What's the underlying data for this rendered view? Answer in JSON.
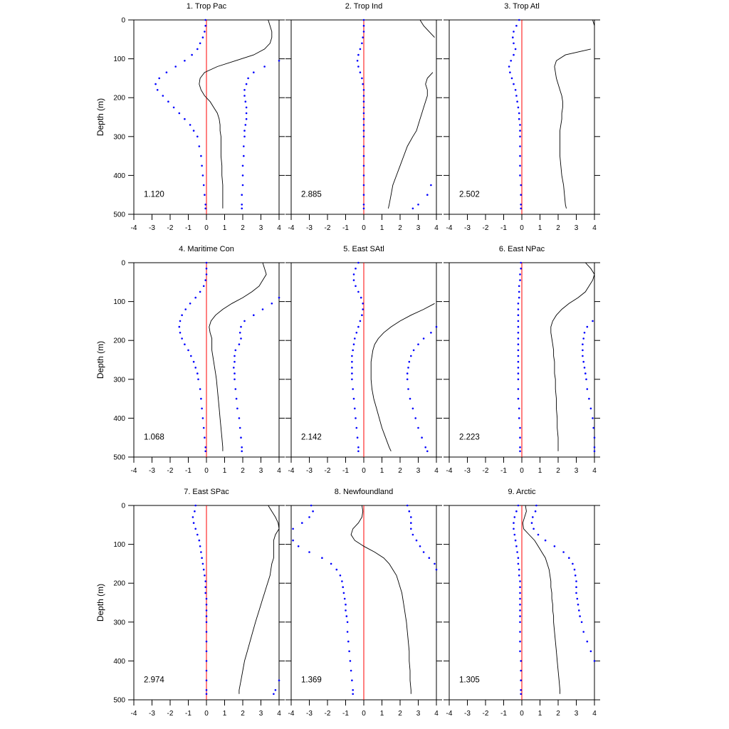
{
  "figure": {
    "ylabel": "Depth (m)",
    "colors": {
      "solid": "#000000",
      "dotted": "#0000ff",
      "zero": "#ff0000"
    }
  },
  "chart_data": [
    {
      "type": "line",
      "title": "1. Trop Pac",
      "stat": "1.120",
      "xlim": [
        -4,
        4
      ],
      "ylim": [
        0,
        500
      ],
      "y_reversed": true,
      "xticks": [
        "-4",
        "-3",
        "-2",
        "-1",
        "0",
        "1",
        "2",
        "3",
        "4"
      ],
      "yticks": [
        "0",
        "100",
        "200",
        "300",
        "400",
        "500"
      ],
      "depths": [
        0,
        15,
        30,
        45,
        60,
        75,
        90,
        105,
        120,
        135,
        150,
        165,
        180,
        195,
        210,
        225,
        240,
        255,
        270,
        285,
        300,
        325,
        350,
        375,
        400,
        425,
        450,
        475,
        485
      ],
      "solid": [
        3.4,
        3.5,
        3.6,
        3.6,
        3.5,
        3.2,
        2.6,
        1.6,
        0.6,
        -0.1,
        -0.35,
        -0.4,
        -0.3,
        -0.1,
        0.2,
        0.4,
        0.6,
        0.7,
        0.75,
        0.75,
        0.8,
        0.8,
        0.8,
        0.85,
        0.85,
        0.9,
        0.9,
        0.9,
        0.9
      ],
      "dotted": [
        -0.05,
        -0.05,
        -0.1,
        -0.2,
        -0.35,
        -0.5,
        -0.8,
        -1.2,
        -1.7,
        -2.2,
        -2.6,
        -2.8,
        -2.7,
        -2.4,
        -2.1,
        -1.8,
        -1.5,
        -1.2,
        -0.9,
        -0.7,
        -0.5,
        -0.4,
        -0.3,
        -0.25,
        -0.2,
        -0.15,
        -0.1,
        -0.05,
        -0.05
      ],
      "dotted2": [
        null,
        null,
        null,
        null,
        null,
        null,
        null,
        4.0,
        3.2,
        2.6,
        2.3,
        2.2,
        2.1,
        2.1,
        2.15,
        2.2,
        2.2,
        2.2,
        2.15,
        2.1,
        2.1,
        2.05,
        2.05,
        2.0,
        2.0,
        2.0,
        1.95,
        1.95,
        1.95
      ]
    },
    {
      "type": "line",
      "title": "2. Trop Ind",
      "stat": "2.885",
      "xlim": [
        -4,
        4
      ],
      "ylim": [
        0,
        500
      ],
      "y_reversed": true,
      "xticks": [
        "-4",
        "-3",
        "-2",
        "-1",
        "0",
        "1",
        "2",
        "3",
        "4"
      ],
      "yticks": [
        "0",
        "100",
        "200",
        "300",
        "400",
        "500"
      ],
      "depths": [
        0,
        15,
        30,
        45,
        60,
        75,
        90,
        105,
        120,
        135,
        150,
        165,
        180,
        195,
        210,
        225,
        240,
        255,
        270,
        285,
        300,
        325,
        350,
        375,
        400,
        425,
        450,
        475,
        485
      ],
      "solid": [
        3.1,
        3.3,
        3.6,
        3.9,
        null,
        null,
        null,
        null,
        null,
        3.8,
        3.5,
        3.4,
        3.5,
        3.5,
        3.4,
        3.3,
        3.2,
        3.1,
        3.0,
        2.9,
        2.7,
        2.4,
        2.2,
        2.0,
        1.8,
        1.6,
        1.5,
        1.4,
        1.35
      ],
      "dotted": [
        0,
        0,
        0,
        -0.05,
        -0.1,
        -0.2,
        -0.3,
        -0.35,
        -0.3,
        -0.2,
        -0.1,
        -0.05,
        0,
        0,
        0,
        0,
        0,
        0,
        0,
        0,
        0,
        0,
        0,
        0,
        0,
        0,
        0,
        0,
        0
      ],
      "dotted2": [
        null,
        null,
        null,
        null,
        null,
        null,
        null,
        null,
        null,
        null,
        null,
        null,
        null,
        null,
        null,
        null,
        null,
        null,
        null,
        null,
        null,
        null,
        null,
        null,
        null,
        3.7,
        3.5,
        3.0,
        2.7
      ]
    },
    {
      "type": "line",
      "title": "3. Trop Atl",
      "stat": "2.502",
      "xlim": [
        -4,
        4
      ],
      "ylim": [
        0,
        500
      ],
      "y_reversed": true,
      "xticks": [
        "-4",
        "-3",
        "-2",
        "-1",
        "0",
        "1",
        "2",
        "3",
        "4"
      ],
      "yticks": [
        "0",
        "100",
        "200",
        "300",
        "400",
        "500"
      ],
      "depths": [
        0,
        15,
        30,
        45,
        60,
        75,
        90,
        105,
        120,
        135,
        150,
        165,
        180,
        195,
        210,
        225,
        240,
        255,
        270,
        285,
        300,
        325,
        350,
        375,
        400,
        425,
        450,
        475,
        485
      ],
      "solid": [
        3.9,
        4.0,
        null,
        null,
        null,
        3.8,
        2.4,
        1.9,
        1.8,
        1.85,
        1.9,
        2.0,
        2.1,
        2.2,
        2.25,
        2.25,
        2.2,
        2.2,
        2.15,
        2.1,
        2.1,
        2.1,
        2.1,
        2.15,
        2.2,
        2.3,
        2.35,
        2.4,
        2.45
      ],
      "dotted": [
        -0.15,
        -0.3,
        -0.45,
        -0.5,
        -0.45,
        -0.35,
        -0.45,
        -0.6,
        -0.7,
        -0.65,
        -0.55,
        -0.45,
        -0.35,
        -0.3,
        -0.25,
        -0.2,
        -0.15,
        -0.15,
        -0.1,
        -0.1,
        -0.1,
        -0.1,
        -0.1,
        -0.1,
        -0.1,
        -0.05,
        -0.05,
        -0.05,
        -0.05
      ],
      "dotted2": []
    },
    {
      "type": "line",
      "title": "4. Maritime Con",
      "stat": "1.068",
      "xlim": [
        -4,
        4
      ],
      "ylim": [
        0,
        500
      ],
      "y_reversed": true,
      "xticks": [
        "-4",
        "-3",
        "-2",
        "-1",
        "0",
        "1",
        "2",
        "3",
        "4"
      ],
      "yticks": [
        "0",
        "100",
        "200",
        "300",
        "400",
        "500"
      ],
      "depths": [
        0,
        15,
        30,
        45,
        60,
        75,
        90,
        105,
        120,
        135,
        150,
        165,
        180,
        195,
        210,
        225,
        240,
        255,
        270,
        285,
        300,
        325,
        350,
        375,
        400,
        425,
        450,
        475,
        485
      ],
      "solid": [
        3.1,
        3.2,
        3.3,
        3.1,
        2.9,
        2.5,
        2.0,
        1.4,
        0.9,
        0.5,
        0.25,
        0.15,
        0.2,
        0.3,
        0.3,
        0.3,
        0.35,
        0.4,
        0.45,
        0.5,
        0.55,
        0.6,
        0.65,
        0.7,
        0.75,
        0.8,
        0.85,
        0.9,
        0.9
      ],
      "dotted": [
        0,
        0,
        0,
        -0.05,
        -0.15,
        -0.35,
        -0.6,
        -0.9,
        -1.15,
        -1.35,
        -1.45,
        -1.5,
        -1.45,
        -1.35,
        -1.2,
        -1.0,
        -0.85,
        -0.7,
        -0.6,
        -0.5,
        -0.45,
        -0.35,
        -0.3,
        -0.25,
        -0.2,
        -0.15,
        -0.1,
        -0.05,
        -0.05
      ],
      "dotted2": [
        null,
        null,
        null,
        null,
        null,
        null,
        4.0,
        3.6,
        3.1,
        2.6,
        2.1,
        1.9,
        1.85,
        1.9,
        1.8,
        1.6,
        1.55,
        1.55,
        1.5,
        1.55,
        1.55,
        1.6,
        1.65,
        1.7,
        1.8,
        1.85,
        1.9,
        1.95,
        1.95
      ]
    },
    {
      "type": "line",
      "title": "5. East SAtl",
      "stat": "2.142",
      "xlim": [
        -4,
        4
      ],
      "ylim": [
        0,
        500
      ],
      "y_reversed": true,
      "xticks": [
        "-4",
        "-3",
        "-2",
        "-1",
        "0",
        "1",
        "2",
        "3",
        "4"
      ],
      "yticks": [
        "0",
        "100",
        "200",
        "300",
        "400",
        "500"
      ],
      "depths": [
        0,
        15,
        30,
        45,
        60,
        75,
        90,
        105,
        120,
        135,
        150,
        165,
        180,
        195,
        210,
        225,
        240,
        255,
        270,
        285,
        300,
        325,
        350,
        375,
        400,
        425,
        450,
        475,
        485
      ],
      "solid": [
        null,
        null,
        null,
        null,
        null,
        null,
        null,
        3.9,
        3.3,
        2.6,
        2.0,
        1.5,
        1.1,
        0.8,
        0.6,
        0.5,
        0.45,
        0.4,
        0.4,
        0.4,
        0.4,
        0.45,
        0.55,
        0.7,
        0.85,
        1.0,
        1.2,
        1.4,
        1.5
      ],
      "dotted": [
        -0.3,
        -0.45,
        -0.55,
        -0.55,
        -0.45,
        -0.3,
        -0.15,
        -0.05,
        -0.05,
        -0.1,
        -0.2,
        -0.3,
        -0.4,
        -0.5,
        -0.55,
        -0.6,
        -0.65,
        -0.65,
        -0.65,
        -0.65,
        -0.65,
        -0.6,
        -0.55,
        -0.5,
        -0.45,
        -0.4,
        -0.35,
        -0.3,
        -0.3
      ],
      "dotted2": [
        null,
        null,
        null,
        null,
        null,
        null,
        null,
        null,
        null,
        null,
        null,
        4.0,
        3.7,
        3.3,
        3.0,
        2.75,
        2.6,
        2.5,
        2.45,
        2.4,
        2.4,
        2.45,
        2.55,
        2.7,
        2.85,
        3.0,
        3.2,
        3.4,
        3.5
      ]
    },
    {
      "type": "line",
      "title": "6. East NPac",
      "stat": "2.223",
      "xlim": [
        -4,
        4
      ],
      "ylim": [
        0,
        500
      ],
      "y_reversed": true,
      "xticks": [
        "-4",
        "-3",
        "-2",
        "-1",
        "0",
        "1",
        "2",
        "3",
        "4"
      ],
      "yticks": [
        "0",
        "100",
        "200",
        "300",
        "400",
        "500"
      ],
      "depths": [
        0,
        15,
        30,
        45,
        60,
        75,
        90,
        105,
        120,
        135,
        150,
        165,
        180,
        195,
        210,
        225,
        240,
        255,
        270,
        285,
        300,
        325,
        350,
        375,
        400,
        425,
        450,
        475,
        485
      ],
      "solid": [
        3.5,
        3.8,
        4.0,
        3.9,
        3.7,
        3.5,
        3.1,
        2.6,
        2.2,
        1.9,
        1.7,
        1.6,
        1.6,
        1.65,
        1.7,
        1.75,
        1.75,
        1.8,
        1.8,
        1.8,
        1.85,
        1.85,
        1.9,
        1.9,
        1.95,
        1.95,
        2.0,
        2.0,
        2.0
      ],
      "dotted": [
        -0.05,
        -0.05,
        -0.1,
        -0.1,
        -0.15,
        -0.15,
        -0.15,
        -0.2,
        -0.2,
        -0.2,
        -0.2,
        -0.2,
        -0.2,
        -0.2,
        -0.2,
        -0.2,
        -0.2,
        -0.2,
        -0.2,
        -0.2,
        -0.2,
        -0.2,
        -0.2,
        -0.15,
        -0.15,
        -0.1,
        -0.1,
        -0.1,
        -0.1
      ],
      "dotted2": [
        null,
        null,
        null,
        null,
        null,
        null,
        null,
        null,
        null,
        null,
        3.9,
        3.6,
        3.45,
        3.4,
        3.35,
        3.35,
        3.35,
        3.4,
        3.45,
        3.5,
        3.55,
        3.6,
        3.7,
        3.8,
        3.9,
        3.95,
        4.0,
        4.0,
        4.0
      ]
    },
    {
      "type": "line",
      "title": "7. East SPac",
      "stat": "2.974",
      "xlim": [
        -4,
        4
      ],
      "ylim": [
        0,
        500
      ],
      "y_reversed": true,
      "xticks": [
        "-4",
        "-3",
        "-2",
        "-1",
        "0",
        "1",
        "2",
        "3",
        "4"
      ],
      "yticks": [
        "0",
        "100",
        "200",
        "300",
        "400",
        "500"
      ],
      "depths": [
        0,
        15,
        30,
        45,
        60,
        75,
        90,
        105,
        120,
        135,
        150,
        165,
        180,
        195,
        210,
        225,
        240,
        255,
        270,
        285,
        300,
        325,
        350,
        375,
        400,
        425,
        450,
        475,
        485
      ],
      "solid": [
        3.4,
        3.6,
        3.8,
        3.95,
        4.0,
        3.8,
        3.7,
        3.7,
        3.7,
        3.7,
        3.6,
        3.55,
        3.5,
        3.4,
        3.3,
        3.2,
        3.1,
        3.0,
        2.9,
        2.8,
        2.7,
        2.55,
        2.4,
        2.25,
        2.1,
        2.0,
        1.9,
        1.8,
        1.8
      ],
      "dotted": [
        -0.6,
        -0.65,
        -0.75,
        -0.7,
        -0.6,
        -0.5,
        -0.4,
        -0.35,
        -0.3,
        -0.25,
        -0.2,
        -0.15,
        -0.1,
        -0.05,
        -0.05,
        -0.05,
        0,
        0,
        0,
        0,
        0,
        0,
        0,
        0,
        0,
        0,
        0,
        0,
        0
      ],
      "dotted2": [
        null,
        null,
        null,
        null,
        null,
        null,
        null,
        null,
        null,
        null,
        null,
        null,
        null,
        null,
        null,
        null,
        null,
        null,
        null,
        null,
        null,
        null,
        null,
        null,
        null,
        null,
        4.0,
        3.8,
        3.7
      ]
    },
    {
      "type": "line",
      "title": "8. Newfoundland",
      "stat": "1.369",
      "xlim": [
        -4,
        4
      ],
      "ylim": [
        0,
        500
      ],
      "y_reversed": true,
      "xticks": [
        "-4",
        "-3",
        "-2",
        "-1",
        "0",
        "1",
        "2",
        "3",
        "4"
      ],
      "yticks": [
        "0",
        "100",
        "200",
        "300",
        "400",
        "500"
      ],
      "depths": [
        0,
        15,
        30,
        45,
        60,
        75,
        90,
        105,
        120,
        135,
        150,
        165,
        180,
        195,
        210,
        225,
        240,
        255,
        270,
        285,
        300,
        325,
        350,
        375,
        400,
        425,
        450,
        475,
        485
      ],
      "solid": [
        -0.1,
        -0.05,
        -0.1,
        -0.3,
        -0.6,
        -0.7,
        -0.5,
        0,
        0.6,
        1.1,
        1.4,
        1.6,
        1.8,
        1.9,
        2.0,
        2.1,
        2.15,
        2.2,
        2.25,
        2.3,
        2.35,
        2.4,
        2.45,
        2.5,
        2.5,
        2.55,
        2.55,
        2.6,
        2.6
      ],
      "dotted": [
        -2.9,
        -2.8,
        -3.0,
        -3.4,
        -3.9,
        null,
        -3.9,
        -3.6,
        -3.0,
        -2.3,
        -1.8,
        -1.5,
        -1.3,
        -1.2,
        -1.15,
        -1.1,
        -1.05,
        -1.0,
        -1.0,
        -0.95,
        -0.9,
        -0.9,
        -0.85,
        -0.8,
        -0.75,
        -0.7,
        -0.65,
        -0.6,
        -0.6
      ],
      "dotted2": [
        2.4,
        2.5,
        2.6,
        2.6,
        2.6,
        2.7,
        2.9,
        3.1,
        3.3,
        3.6,
        3.9,
        4.0,
        null,
        null,
        null,
        null,
        null,
        null,
        null,
        null,
        null,
        null,
        null,
        null,
        null,
        null,
        null,
        null,
        null
      ]
    },
    {
      "type": "line",
      "title": "9. Arctic",
      "stat": "1.305",
      "xlim": [
        -4,
        4
      ],
      "ylim": [
        0,
        500
      ],
      "y_reversed": true,
      "xticks": [
        "-4",
        "-3",
        "-2",
        "-1",
        "0",
        "1",
        "2",
        "3",
        "4"
      ],
      "yticks": [
        "0",
        "100",
        "200",
        "300",
        "400",
        "500"
      ],
      "depths": [
        0,
        15,
        30,
        45,
        60,
        75,
        90,
        105,
        120,
        135,
        150,
        165,
        180,
        195,
        210,
        225,
        240,
        255,
        270,
        285,
        300,
        325,
        350,
        375,
        400,
        425,
        450,
        475,
        485
      ],
      "solid": [
        0.2,
        0.25,
        0.15,
        0.05,
        0.1,
        0.4,
        0.7,
        0.9,
        1.1,
        1.3,
        1.4,
        1.5,
        1.55,
        1.6,
        1.6,
        1.65,
        1.65,
        1.7,
        1.7,
        1.75,
        1.75,
        1.8,
        1.85,
        1.9,
        1.95,
        2.0,
        2.05,
        2.1,
        2.1
      ],
      "dotted": [
        -0.2,
        -0.3,
        -0.4,
        -0.45,
        -0.45,
        -0.4,
        -0.35,
        -0.3,
        -0.25,
        -0.2,
        -0.2,
        -0.15,
        -0.15,
        -0.1,
        -0.1,
        -0.1,
        -0.1,
        -0.1,
        -0.1,
        -0.1,
        -0.1,
        -0.1,
        -0.1,
        -0.1,
        -0.05,
        -0.05,
        -0.05,
        -0.05,
        -0.05
      ],
      "dotted2": [
        0.8,
        0.75,
        0.6,
        0.55,
        0.65,
        0.9,
        1.3,
        1.8,
        2.3,
        2.6,
        2.8,
        2.9,
        2.95,
        3.0,
        3.0,
        3.0,
        3.05,
        3.1,
        3.15,
        3.2,
        3.3,
        3.4,
        3.6,
        3.8,
        4.0,
        null,
        null,
        null,
        null
      ]
    }
  ]
}
